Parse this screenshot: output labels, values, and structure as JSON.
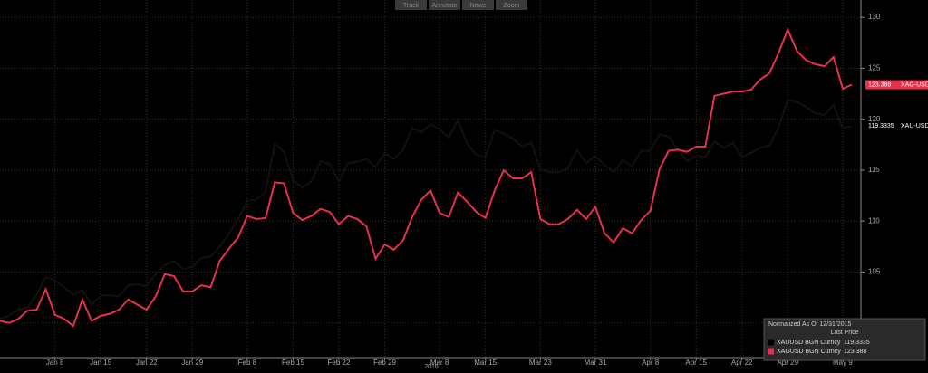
{
  "toolbar": [
    "Track",
    "Annotate",
    "News",
    "Zoom"
  ],
  "chart_data": {
    "type": "line",
    "x_label": "2016",
    "legend_title": "Normalized As Of 12/31/2015",
    "legend_subtitle": "Last Price",
    "legend_position": "lower right",
    "grid": true,
    "ylim": [
      96.6,
      131.7
    ],
    "yticks": [
      100,
      105,
      110,
      115,
      120,
      125,
      130
    ],
    "categories": [
      null,
      null,
      null,
      null,
      null,
      null,
      "Jan 8",
      null,
      null,
      null,
      null,
      "Jan 15",
      null,
      null,
      null,
      null,
      "Jan 22",
      null,
      null,
      null,
      null,
      "Jan 29",
      null,
      null,
      null,
      null,
      null,
      "Feb 8",
      null,
      null,
      null,
      null,
      "Feb 15",
      null,
      null,
      null,
      null,
      "Feb 22",
      null,
      null,
      null,
      null,
      "Feb 29",
      null,
      null,
      null,
      null,
      null,
      "Mar 8",
      null,
      null,
      null,
      null,
      "Mar 15",
      null,
      null,
      null,
      null,
      null,
      "Mar 23",
      null,
      null,
      null,
      null,
      null,
      "Mar 31",
      null,
      null,
      null,
      null,
      null,
      "Apr 8",
      null,
      null,
      null,
      null,
      "Apr 15",
      null,
      null,
      null,
      null,
      "Apr 22",
      null,
      null,
      null,
      null,
      "Apr 29",
      null,
      null,
      null,
      null,
      null,
      "May 9",
      null
    ],
    "series": [
      {
        "name": "XAUUSD BGN Curncy",
        "tag": "XAU-USD X",
        "color": "#000000",
        "values": [
          100.4,
          100.7,
          101.3,
          101.5,
          102.8,
          104.5,
          104.2,
          103.5,
          102.8,
          103.2,
          101.8,
          102.7,
          102.7,
          102.6,
          103.7,
          103.8,
          103.6,
          104.8,
          105.7,
          106.1,
          105.3,
          105.5,
          106.4,
          106.5,
          107.5,
          108.8,
          110.2,
          112.0,
          112.1,
          112.9,
          117.6,
          116.8,
          114.0,
          113.3,
          113.9,
          115.9,
          115.6,
          113.9,
          115.7,
          115.8,
          116.1,
          115.3,
          116.7,
          116.1,
          117.0,
          119.1,
          118.7,
          119.5,
          119.0,
          118.2,
          119.9,
          117.6,
          116.5,
          116.3,
          118.9,
          118.6,
          118.1,
          117.3,
          117.7,
          115.1,
          114.8,
          114.8,
          115.2,
          117.0,
          115.7,
          116.4,
          115.5,
          114.8,
          116.0,
          115.4,
          116.9,
          116.9,
          118.5,
          118.3,
          117.0,
          115.9,
          116.4,
          116.3,
          117.8,
          117.2,
          117.7,
          116.3,
          116.7,
          117.2,
          117.4,
          119.2,
          121.9,
          121.7,
          121.2,
          120.6,
          120.4,
          121.4,
          119.1,
          119.3335
        ]
      },
      {
        "name": "XAGUSD BGN Curncy",
        "tag": "XAG-USD X",
        "color": "#e8304a",
        "values": [
          100.2,
          100.0,
          100.4,
          101.2,
          101.3,
          103.3,
          100.8,
          100.4,
          99.7,
          102.3,
          100.2,
          100.7,
          100.9,
          101.3,
          102.3,
          101.8,
          101.3,
          102.6,
          104.8,
          104.6,
          103.1,
          103.1,
          103.7,
          103.5,
          106.1,
          107.3,
          108.4,
          110.5,
          110.2,
          110.3,
          113.8,
          113.7,
          110.8,
          110.1,
          110.5,
          111.2,
          110.9,
          109.7,
          110.5,
          110.2,
          109.5,
          106.3,
          107.7,
          107.2,
          108.1,
          110.4,
          112.1,
          113.0,
          110.8,
          110.4,
          112.8,
          111.9,
          110.9,
          110.3,
          113.0,
          115.0,
          114.2,
          114.2,
          114.8,
          110.2,
          109.7,
          109.7,
          110.2,
          111.1,
          110.2,
          111.4,
          108.8,
          107.9,
          109.3,
          108.8,
          110.1,
          111.0,
          115.1,
          116.9,
          117.0,
          116.8,
          117.3,
          117.3,
          122.3,
          122.5,
          122.7,
          122.7,
          122.9,
          123.9,
          124.5,
          126.5,
          128.8,
          126.7,
          125.8,
          125.4,
          125.2,
          126.1,
          123.0,
          123.388
        ]
      }
    ]
  }
}
